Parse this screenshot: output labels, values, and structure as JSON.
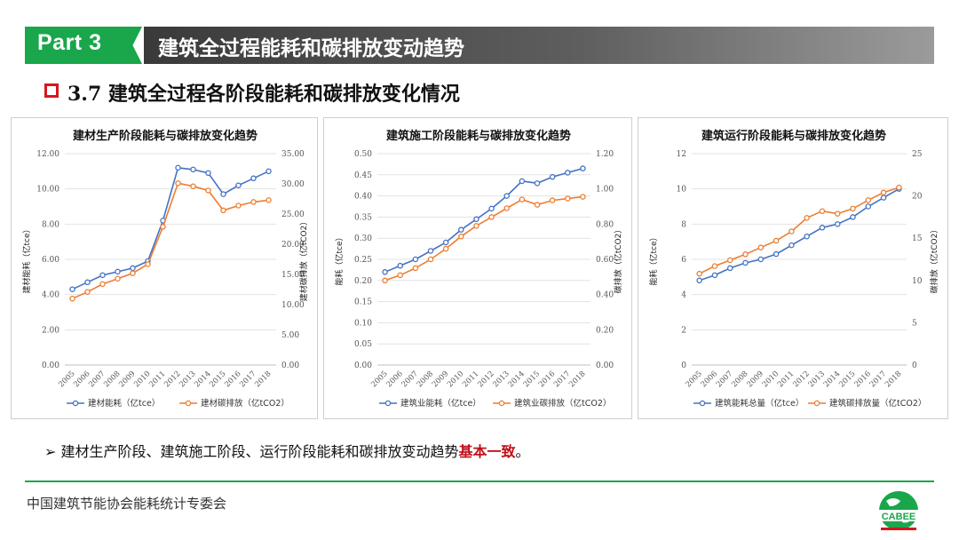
{
  "header": {
    "part_label": "Part 3",
    "title": "建筑全过程能耗和碳排放变动趋势"
  },
  "section": {
    "title": "3.7 建筑全过程各阶段能耗和碳排放变化情况"
  },
  "colors": {
    "energy_line": "#4472c4",
    "carbon_line": "#ed7d31",
    "accent_green": "#1aa64b",
    "accent_red": "#d6161f"
  },
  "chart_data": [
    {
      "type": "line",
      "title": "建材生产阶段能耗与碳排放变化趋势",
      "categories": [
        "2005",
        "2006",
        "2007",
        "2008",
        "2009",
        "2010",
        "2011",
        "2012",
        "2013",
        "2014",
        "2015",
        "2016",
        "2017",
        "2018"
      ],
      "y_left": {
        "label": "建材能耗（亿tce）",
        "ylim": [
          0,
          12
        ],
        "ticks": [
          "0.00",
          "2.00",
          "4.00",
          "6.00",
          "8.00",
          "10.00",
          "12.00"
        ]
      },
      "y_right": {
        "label": "建材碳排放（亿tCO2）",
        "ylim": [
          0,
          35
        ],
        "ticks": [
          "0.00",
          "5.00",
          "10.00",
          "15.00",
          "20.00",
          "25.00",
          "30.00",
          "35.00"
        ]
      },
      "series": [
        {
          "name": "建材能耗（亿tce）",
          "axis": "left",
          "values": [
            4.3,
            4.7,
            5.1,
            5.3,
            5.5,
            5.9,
            8.2,
            11.2,
            11.1,
            10.9,
            9.7,
            10.2,
            10.6,
            11.0
          ]
        },
        {
          "name": "建材碳排放（亿tCO2）",
          "axis": "right",
          "values": [
            11.0,
            12.1,
            13.4,
            14.3,
            15.2,
            16.7,
            22.9,
            30.1,
            29.6,
            28.9,
            25.6,
            26.4,
            27.0,
            27.3
          ]
        }
      ],
      "grid": true,
      "legend": "bottom"
    },
    {
      "type": "line",
      "title": "建筑施工阶段能耗与碳排放变化趋势",
      "categories": [
        "2005",
        "2006",
        "2007",
        "2008",
        "2009",
        "2010",
        "2011",
        "2012",
        "2013",
        "2014",
        "2015",
        "2016",
        "2017",
        "2018"
      ],
      "y_left": {
        "label": "能耗（亿tce）",
        "ylim": [
          0,
          0.5
        ],
        "ticks": [
          "0.00",
          "0.05",
          "0.10",
          "0.15",
          "0.20",
          "0.25",
          "0.30",
          "0.35",
          "0.40",
          "0.45",
          "0.50"
        ]
      },
      "y_right": {
        "label": "碳排放（亿tCO2）",
        "ylim": [
          0,
          1.2
        ],
        "ticks": [
          "0.00",
          "0.20",
          "0.40",
          "0.60",
          "0.80",
          "1.00",
          "1.20"
        ]
      },
      "series": [
        {
          "name": "建筑业能耗（亿tce）",
          "axis": "left",
          "values": [
            0.22,
            0.235,
            0.25,
            0.27,
            0.29,
            0.32,
            0.345,
            0.37,
            0.4,
            0.435,
            0.43,
            0.445,
            0.455,
            0.465
          ]
        },
        {
          "name": "建筑业碳排放（亿tCO2）",
          "axis": "right",
          "values": [
            0.48,
            0.51,
            0.55,
            0.6,
            0.66,
            0.73,
            0.79,
            0.84,
            0.89,
            0.94,
            0.91,
            0.935,
            0.945,
            0.955
          ]
        }
      ],
      "grid": true,
      "legend": "bottom"
    },
    {
      "type": "line",
      "title": "建筑运行阶段能耗与碳排放变化趋势",
      "categories": [
        "2005",
        "2006",
        "2007",
        "2008",
        "2009",
        "2010",
        "2011",
        "2012",
        "2013",
        "2014",
        "2015",
        "2016",
        "2017",
        "2018"
      ],
      "y_left": {
        "label": "能耗（亿tce）",
        "ylim": [
          0,
          12
        ],
        "ticks": [
          "0",
          "2",
          "4",
          "6",
          "8",
          "10",
          "12"
        ]
      },
      "y_right": {
        "label": "碳排放（亿tCO2）",
        "ylim": [
          0,
          25
        ],
        "ticks": [
          "0",
          "5",
          "10",
          "15",
          "20",
          "25"
        ]
      },
      "series": [
        {
          "name": "建筑能耗总量（亿tce）",
          "axis": "left",
          "values": [
            4.8,
            5.1,
            5.5,
            5.8,
            6.0,
            6.3,
            6.8,
            7.3,
            7.8,
            8.0,
            8.4,
            9.0,
            9.5,
            10.0
          ]
        },
        {
          "name": "建筑碳排放量（亿tCO2）",
          "axis": "right",
          "values": [
            10.8,
            11.7,
            12.4,
            13.1,
            13.9,
            14.7,
            15.8,
            17.4,
            18.2,
            17.9,
            18.5,
            19.5,
            20.4,
            21.0
          ]
        }
      ],
      "grid": true,
      "legend": "bottom"
    }
  ],
  "bullet": {
    "marker": "➢",
    "text": "建材生产阶段、建筑施工阶段、运行阶段能耗和碳排放变动趋势",
    "highlight": "基本一致",
    "end": "。"
  },
  "footer": {
    "org": "中国建筑节能协会能耗统计专委会",
    "logo_text": "CABEE"
  }
}
